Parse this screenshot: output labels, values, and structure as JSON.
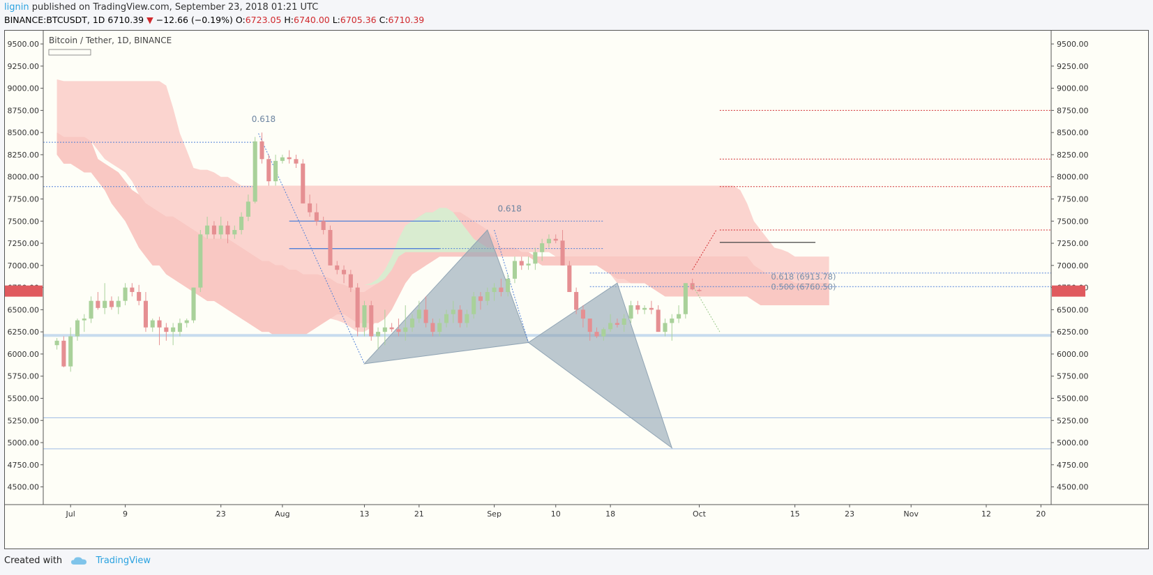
{
  "header": {
    "author": "lignin",
    "published_text": "published on TradingView.com, September 23, 2018 01:21 UTC",
    "symbol": "BINANCE:BTCUSDT, 1D",
    "last": "6710.39",
    "change_arrow": "▼",
    "change": "−12.66 (−0.19%)",
    "open_label": "O:",
    "open": "6723.05",
    "high_label": "H:",
    "high": "6740.00",
    "low_label": "L:",
    "low": "6705.36",
    "close_label": "C:",
    "close": "6710.39"
  },
  "footer": {
    "created_with": "Created with",
    "brand": "TradingView"
  },
  "colors": {
    "bull": "#a9d19a",
    "bear": "#e58f92",
    "cloud_bear": "#fbd4cf",
    "cloud_bull": "#d9ecd0",
    "level_red": "#d0292d",
    "pattern": "#90a4b4",
    "fib_blue": "#4f7fd8",
    "price_badge": "#e05a5e"
  },
  "chart_data": {
    "type": "candlestick",
    "title": "Bitcoin / Tether, 1D, BINANCE",
    "ylim": [
      4300,
      9650
    ],
    "y_ticks": [
      "9500.00",
      "9250.00",
      "9000.00",
      "8750.00",
      "8500.00",
      "8250.00",
      "8000.00",
      "7750.00",
      "7500.00",
      "7250.00",
      "7000.00",
      "6750.00",
      "6500.00",
      "6250.00",
      "6000.00",
      "5750.00",
      "5500.00",
      "5250.00",
      "5000.00",
      "4750.00",
      "4500.00"
    ],
    "x_ticks": [
      {
        "day": 2,
        "label": "Jul"
      },
      {
        "day": 10,
        "label": "9"
      },
      {
        "day": 24,
        "label": "23"
      },
      {
        "day": 33,
        "label": "Aug"
      },
      {
        "day": 45,
        "label": "13"
      },
      {
        "day": 53,
        "label": "21"
      },
      {
        "day": 64,
        "label": "Sep"
      },
      {
        "day": 73,
        "label": "10"
      },
      {
        "day": 81,
        "label": "18"
      },
      {
        "day": 94,
        "label": "Oct"
      },
      {
        "day": 108,
        "label": "15"
      },
      {
        "day": 116,
        "label": "23"
      },
      {
        "day": 125,
        "label": "Nov"
      },
      {
        "day": 136,
        "label": "12"
      },
      {
        "day": 144,
        "label": "20"
      }
    ],
    "x_range": [
      -2,
      145.5
    ],
    "last_price": "6710.39",
    "candles": [
      [
        6100,
        6180,
        6050,
        6150
      ],
      [
        6150,
        6200,
        5850,
        5860
      ],
      [
        5860,
        6300,
        5800,
        6200
      ],
      [
        6200,
        6400,
        6150,
        6380
      ],
      [
        6380,
        6450,
        6250,
        6400
      ],
      [
        6400,
        6650,
        6350,
        6600
      ],
      [
        6600,
        6700,
        6500,
        6520
      ],
      [
        6520,
        6800,
        6450,
        6600
      ],
      [
        6600,
        6650,
        6500,
        6530
      ],
      [
        6530,
        6650,
        6450,
        6600
      ],
      [
        6600,
        6800,
        6550,
        6750
      ],
      [
        6750,
        6800,
        6650,
        6700
      ],
      [
        6700,
        6780,
        6550,
        6600
      ],
      [
        6600,
        6700,
        6250,
        6300
      ],
      [
        6300,
        6400,
        6250,
        6380
      ],
      [
        6380,
        6420,
        6100,
        6300
      ],
      [
        6300,
        6350,
        6150,
        6250
      ],
      [
        6250,
        6350,
        6100,
        6300
      ],
      [
        6250,
        6400,
        6200,
        6350
      ],
      [
        6350,
        6400,
        6300,
        6380
      ],
      [
        6380,
        6750,
        6350,
        6750
      ],
      [
        6750,
        7400,
        6700,
        7350
      ],
      [
        7350,
        7550,
        7300,
        7450
      ],
      [
        7450,
        7500,
        7300,
        7350
      ],
      [
        7350,
        7550,
        7300,
        7450
      ],
      [
        7450,
        7500,
        7250,
        7350
      ],
      [
        7350,
        7450,
        7300,
        7400
      ],
      [
        7400,
        7600,
        7350,
        7550
      ],
      [
        7550,
        7800,
        7500,
        7720
      ],
      [
        7720,
        8450,
        7700,
        8400
      ],
      [
        8400,
        8500,
        8150,
        8200
      ],
      [
        8200,
        8250,
        7900,
        7950
      ],
      [
        7950,
        8250,
        7900,
        8180
      ],
      [
        8180,
        8250,
        8150,
        8220
      ],
      [
        8220,
        8300,
        8150,
        8200
      ],
      [
        8200,
        8250,
        8100,
        8150
      ],
      [
        8150,
        8200,
        7700,
        7700
      ],
      [
        7700,
        7800,
        7550,
        7600
      ],
      [
        7600,
        7700,
        7450,
        7500
      ],
      [
        7500,
        7550,
        7350,
        7400
      ],
      [
        7400,
        7450,
        7000,
        7000
      ],
      [
        7000,
        7050,
        6900,
        6950
      ],
      [
        6950,
        7000,
        6800,
        6900
      ],
      [
        6900,
        6950,
        6700,
        6750
      ],
      [
        6750,
        6800,
        6200,
        6300
      ],
      [
        6300,
        6600,
        6200,
        6550
      ],
      [
        6550,
        6600,
        6150,
        6200
      ],
      [
        6200,
        6300,
        6050,
        6250
      ],
      [
        6250,
        6500,
        6100,
        6300
      ],
      [
        6300,
        6350,
        6250,
        6280
      ],
      [
        6280,
        6400,
        6200,
        6250
      ],
      [
        6250,
        6550,
        6150,
        6300
      ],
      [
        6300,
        6450,
        6250,
        6400
      ],
      [
        6400,
        6600,
        6350,
        6500
      ],
      [
        6500,
        6650,
        6300,
        6350
      ],
      [
        6350,
        6400,
        6200,
        6250
      ],
      [
        6250,
        6400,
        6200,
        6350
      ],
      [
        6350,
        6500,
        6300,
        6450
      ],
      [
        6450,
        6600,
        6350,
        6500
      ],
      [
        6500,
        6550,
        6300,
        6350
      ],
      [
        6350,
        6500,
        6300,
        6450
      ],
      [
        6450,
        6700,
        6400,
        6650
      ],
      [
        6650,
        6700,
        6500,
        6600
      ],
      [
        6600,
        6750,
        6550,
        6700
      ],
      [
        6700,
        6800,
        6600,
        6750
      ],
      [
        6750,
        6850,
        6650,
        6700
      ],
      [
        6700,
        6900,
        6650,
        6850
      ],
      [
        6850,
        7100,
        6800,
        7050
      ],
      [
        7050,
        7100,
        6950,
        7000
      ],
      [
        7000,
        7100,
        6950,
        7020
      ],
      [
        7020,
        7200,
        6950,
        7150
      ],
      [
        7150,
        7300,
        7050,
        7250
      ],
      [
        7250,
        7350,
        7200,
        7300
      ],
      [
        7300,
        7350,
        7250,
        7280
      ],
      [
        7280,
        7400,
        7000,
        7000
      ],
      [
        7000,
        7050,
        6700,
        6700
      ],
      [
        6700,
        6750,
        6450,
        6500
      ],
      [
        6500,
        6550,
        6300,
        6400
      ],
      [
        6400,
        6400,
        6150,
        6250
      ],
      [
        6250,
        6300,
        6180,
        6200
      ],
      [
        6200,
        6300,
        6150,
        6280
      ],
      [
        6280,
        6450,
        6250,
        6350
      ],
      [
        6350,
        6400,
        6300,
        6330
      ],
      [
        6330,
        6450,
        6250,
        6400
      ],
      [
        6400,
        6600,
        6350,
        6550
      ],
      [
        6550,
        6600,
        6450,
        6500
      ],
      [
        6500,
        6550,
        6450,
        6520
      ],
      [
        6520,
        6600,
        6450,
        6500
      ],
      [
        6500,
        6550,
        6250,
        6250
      ],
      [
        6250,
        6400,
        6200,
        6350
      ],
      [
        6350,
        6450,
        6150,
        6400
      ],
      [
        6400,
        6550,
        6350,
        6450
      ],
      [
        6450,
        6800,
        6400,
        6800
      ],
      [
        6800,
        6850,
        6720,
        6730
      ],
      [
        6723.05,
        6740,
        6705.36,
        6710.39
      ]
    ],
    "cloud_front_top": [
      9100,
      9080,
      9080,
      9080,
      9080,
      9080,
      9080,
      9080,
      9080,
      9080,
      9080,
      9080,
      9080,
      9080,
      9080,
      9080,
      9030,
      8780,
      8490,
      8300,
      8100,
      8080,
      8080,
      8050,
      8000,
      8000,
      7950,
      7900,
      7900,
      7900,
      7900,
      7900,
      7900,
      7900,
      7900,
      7900,
      7900,
      7900,
      7900,
      7900,
      7900,
      7900,
      7900,
      7900,
      7900,
      7900,
      7900,
      7900,
      7900,
      7900,
      7900,
      7900,
      7900,
      7900,
      7900,
      7900,
      7900,
      7900,
      7900,
      7900,
      7900,
      7900,
      7900,
      7900,
      7900,
      7900,
      7900,
      7900,
      7900,
      7900,
      7900,
      7900,
      7900,
      7900,
      7900,
      7900,
      7900,
      7900,
      7900,
      7900,
      7900,
      7900,
      7900,
      7900,
      7900,
      7900,
      7900,
      7900,
      7900,
      7900,
      7900,
      7900,
      7900,
      7900,
      7900,
      7900,
      7900,
      7900,
      7900,
      7900,
      7850,
      7700,
      7500,
      7400,
      7300,
      7200,
      7180,
      7150,
      7100,
      7100,
      7100,
      7100,
      7100,
      7100
    ],
    "cloud_front_bottom": [
      8500,
      8400,
      8400,
      8400,
      8400,
      8400,
      8300,
      8200,
      8150,
      8100,
      8050,
      7950,
      7800,
      7700,
      7550,
      7400,
      7250,
      7150,
      7050,
      6950,
      6850,
      6800,
      6750,
      6750,
      6750,
      6700,
      6650,
      6600,
      6550,
      6500,
      6450,
      6420,
      6400,
      6400,
      6380,
      6350,
      6300,
      6350,
      6400,
      6420,
      6400,
      6380,
      6350,
      6300,
      6250,
      6250,
      6300,
      6400,
      6500,
      6650,
      6800,
      6900,
      6950,
      7000,
      7050,
      7100,
      7150,
      7150,
      7150,
      7150,
      7150,
      7150,
      7150,
      7150,
      7150,
      7150,
      7150,
      7150,
      7150,
      7150,
      7150,
      7150,
      7150,
      7100,
      7050,
      7000,
      7000,
      7000,
      7000,
      7000,
      7000,
      6900,
      6800,
      6800,
      6800,
      6800,
      6800,
      6800,
      6700,
      6650,
      6650,
      6650,
      6650,
      6650,
      6650,
      6650,
      6650,
      6650,
      6650,
      6650,
      6650,
      6650,
      6650,
      6600,
      6550,
      6550,
      6550,
      6550,
      6550,
      6550,
      6550,
      6550,
      6550,
      6550
    ],
    "cloud_back_top": [
      8500,
      8450,
      8450,
      8450,
      8450,
      8400,
      8200,
      8150,
      8100,
      8050,
      7950,
      7850,
      7800,
      7700,
      7650,
      7600,
      7550,
      7550,
      7500,
      7450,
      7400,
      7350,
      7300,
      7300,
      7300,
      7300,
      7250,
      7200,
      7150,
      7100,
      7050,
      7050,
      7000,
      7000,
      6950,
      6950,
      6900,
      6900,
      6900,
      6880,
      6850,
      6800,
      6780,
      6750,
      6700,
      6700,
      6750,
      6800,
      6900,
      7000,
      7200,
      7400,
      7500,
      7550,
      7600,
      7600,
      7600,
      7600,
      7600,
      7600,
      7550,
      7500,
      7450,
      7400,
      7300,
      7200,
      7200,
      7200,
      7150,
      7150,
      7100,
      7100,
      7100,
      7100,
      7100,
      7100,
      7100,
      7100,
      7100,
      7100,
      7100,
      7100,
      7100,
      7100,
      7100,
      7100,
      7100,
      7100,
      7100,
      7100,
      7100,
      7100,
      7100,
      7100,
      7100,
      7100,
      7100,
      7100,
      7100,
      7100,
      7100,
      7100,
      7000,
      6950,
      6900,
      6900,
      6850,
      6850,
      6800,
      6800,
      6800,
      6800,
      6800,
      6800
    ],
    "cloud_back_bottom": [
      8250,
      8150,
      8150,
      8100,
      8050,
      8050,
      7950,
      7850,
      7700,
      7600,
      7500,
      7350,
      7200,
      7100,
      7000,
      7000,
      6900,
      6850,
      6800,
      6750,
      6700,
      6650,
      6600,
      6600,
      6550,
      6500,
      6450,
      6400,
      6350,
      6300,
      6250,
      6250,
      6200,
      6200,
      6200,
      6200,
      6200,
      6250,
      6300,
      6350,
      6400,
      6450,
      6450,
      6400,
      6350,
      6350,
      6350,
      6350,
      6400,
      6500,
      6650,
      6800,
      6900,
      6950,
      7000,
      7050,
      7100,
      7100,
      7100,
      7100,
      7100,
      7100,
      7100,
      7100,
      7100,
      7100,
      7100,
      7100,
      7100,
      7100,
      7050,
      7000,
      7000,
      7000,
      7000,
      7000,
      7000,
      7000,
      7000,
      7000,
      6950,
      6900,
      6850,
      6850,
      6800,
      6800,
      6800,
      6750,
      6700,
      6650,
      6650,
      6650,
      6650,
      6650,
      6650,
      6650,
      6650,
      6650,
      6650,
      6650,
      6650,
      6650,
      6600,
      6550,
      6550,
      6550,
      6550,
      6550,
      6550,
      6550,
      6550,
      6550,
      6550,
      6550
    ],
    "cloud_bull_segment": {
      "from_day": 45,
      "to_day": 64,
      "top": [
        6780,
        6800,
        6850,
        6950,
        7100,
        7300,
        7450,
        7500,
        7550,
        7600,
        7600,
        7650,
        7650,
        7600,
        7500,
        7400,
        7300,
        7250,
        7200,
        7200
      ],
      "bottom": [
        6780,
        6780,
        6800,
        6850,
        6950,
        7100,
        7150,
        7150,
        7150,
        7150,
        7150,
        7150,
        7150,
        7150,
        7150,
        7150,
        7150,
        7150,
        7150,
        7150
      ]
    },
    "annotations": {
      "fib_label_1": "0.618",
      "fib_label_2": "0.618",
      "fib_618": "0.618 (6913.78)",
      "fib_500": "0.500 (6760.50)"
    },
    "support_levels": [
      6210,
      5280,
      4930
    ],
    "resistance_levels": [
      8750,
      8200,
      7890,
      7400
    ],
    "target_level": 7260,
    "harmonic_pattern": [
      [
        45,
        5890
      ],
      [
        63,
        7400
      ],
      [
        69,
        6130
      ],
      [
        82,
        6800
      ],
      [
        90,
        4940
      ]
    ]
  }
}
